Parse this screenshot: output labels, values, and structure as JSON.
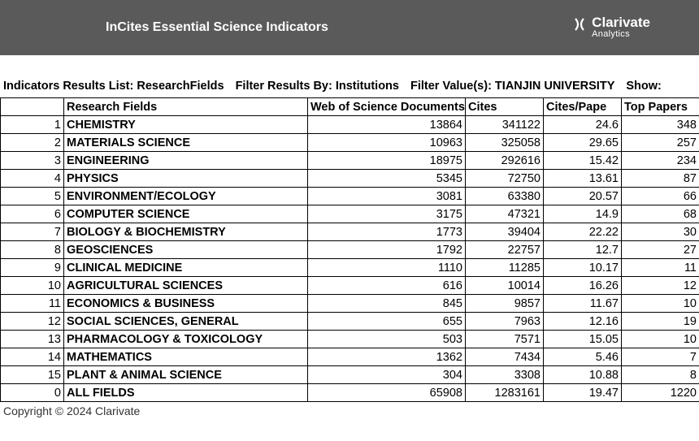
{
  "header": {
    "title": "InCites Essential Science Indicators",
    "logo_main": "Clarivate",
    "logo_sub": "Analytics"
  },
  "filter": {
    "seg1": "Indicators Results List: ResearchFields",
    "seg2": "Filter Results By: Institutions",
    "seg3": "Filter Value(s): TIANJIN UNIVERSITY",
    "seg4": "Show:"
  },
  "columns": {
    "idx": "",
    "field": "Research Fields",
    "docs": "Web of Science Documents",
    "cites": "Cites",
    "cp": "Cites/Pape",
    "top": "Top Papers"
  },
  "rows": [
    {
      "idx": "1",
      "field": "CHEMISTRY",
      "docs": "13864",
      "cites": "341122",
      "cp": "24.6",
      "top": "348"
    },
    {
      "idx": "2",
      "field": "MATERIALS SCIENCE",
      "docs": "10963",
      "cites": "325058",
      "cp": "29.65",
      "top": "257"
    },
    {
      "idx": "3",
      "field": "ENGINEERING",
      "docs": "18975",
      "cites": "292616",
      "cp": "15.42",
      "top": "234"
    },
    {
      "idx": "4",
      "field": "PHYSICS",
      "docs": "5345",
      "cites": "72750",
      "cp": "13.61",
      "top": "87"
    },
    {
      "idx": "5",
      "field": "ENVIRONMENT/ECOLOGY",
      "docs": "3081",
      "cites": "63380",
      "cp": "20.57",
      "top": "66"
    },
    {
      "idx": "6",
      "field": "COMPUTER SCIENCE",
      "docs": "3175",
      "cites": "47321",
      "cp": "14.9",
      "top": "68"
    },
    {
      "idx": "7",
      "field": "BIOLOGY & BIOCHEMISTRY",
      "docs": "1773",
      "cites": "39404",
      "cp": "22.22",
      "top": "30"
    },
    {
      "idx": "8",
      "field": "GEOSCIENCES",
      "docs": "1792",
      "cites": "22757",
      "cp": "12.7",
      "top": "27"
    },
    {
      "idx": "9",
      "field": "CLINICAL MEDICINE",
      "docs": "1110",
      "cites": "11285",
      "cp": "10.17",
      "top": "11"
    },
    {
      "idx": "10",
      "field": "AGRICULTURAL SCIENCES",
      "docs": "616",
      "cites": "10014",
      "cp": "16.26",
      "top": "12"
    },
    {
      "idx": "11",
      "field": "ECONOMICS & BUSINESS",
      "docs": "845",
      "cites": "9857",
      "cp": "11.67",
      "top": "10"
    },
    {
      "idx": "12",
      "field": "SOCIAL SCIENCES, GENERAL",
      "docs": "655",
      "cites": "7963",
      "cp": "12.16",
      "top": "19"
    },
    {
      "idx": "13",
      "field": "PHARMACOLOGY & TOXICOLOGY",
      "docs": "503",
      "cites": "7571",
      "cp": "15.05",
      "top": "10"
    },
    {
      "idx": "14",
      "field": "MATHEMATICS",
      "docs": "1362",
      "cites": "7434",
      "cp": "5.46",
      "top": "7"
    },
    {
      "idx": "15",
      "field": "PLANT & ANIMAL SCIENCE",
      "docs": "304",
      "cites": "3308",
      "cp": "10.88",
      "top": "8"
    },
    {
      "idx": "0",
      "field": "ALL FIELDS",
      "docs": "65908",
      "cites": "1283161",
      "cp": "19.47",
      "top": "1220"
    }
  ],
  "copyright": "Copyright © 2024 Clarivate"
}
